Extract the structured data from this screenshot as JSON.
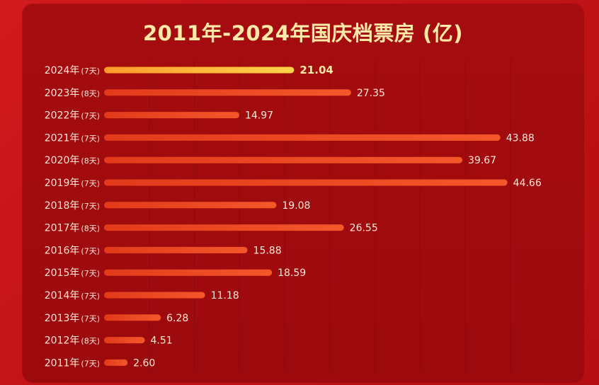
{
  "chart_data": {
    "type": "bar",
    "orientation": "horizontal",
    "title": "2011年-2024年国庆档票房 (亿)",
    "categories": [
      {
        "year": "2024年",
        "days": "(7天)"
      },
      {
        "year": "2023年",
        "days": "(8天)"
      },
      {
        "year": "2022年",
        "days": "(7天)"
      },
      {
        "year": "2021年",
        "days": "(7天)"
      },
      {
        "year": "2020年",
        "days": "(8天)"
      },
      {
        "year": "2019年",
        "days": "(7天)"
      },
      {
        "year": "2018年",
        "days": "(7天)"
      },
      {
        "year": "2017年",
        "days": "(8天)"
      },
      {
        "year": "2016年",
        "days": "(7天)"
      },
      {
        "year": "2015年",
        "days": "(7天)"
      },
      {
        "year": "2014年",
        "days": "(7天)"
      },
      {
        "year": "2013年",
        "days": "(7天)"
      },
      {
        "year": "2012年",
        "days": "(8天)"
      },
      {
        "year": "2011年",
        "days": "(7天)"
      }
    ],
    "values": [
      21.04,
      27.35,
      14.97,
      43.88,
      39.67,
      44.66,
      19.08,
      26.55,
      15.88,
      18.59,
      11.18,
      6.28,
      4.51,
      2.6
    ],
    "value_labels": [
      "21.04",
      "27.35",
      "14.97",
      "43.88",
      "39.67",
      "44.66",
      "19.08",
      "26.55",
      "15.88",
      "18.59",
      "11.18",
      "6.28",
      "4.51",
      "2.60"
    ],
    "highlight_index": 0,
    "xlim": [
      0,
      45
    ],
    "grid": true,
    "colors": {
      "bar": "#ee4a1e",
      "highlight_bar": "#ffc233",
      "label": "#ffe7d8",
      "highlight_label": "#ffe9a8",
      "title": "#ffe9a8",
      "panel": "#a10b0e",
      "background": "#c8161a"
    }
  }
}
